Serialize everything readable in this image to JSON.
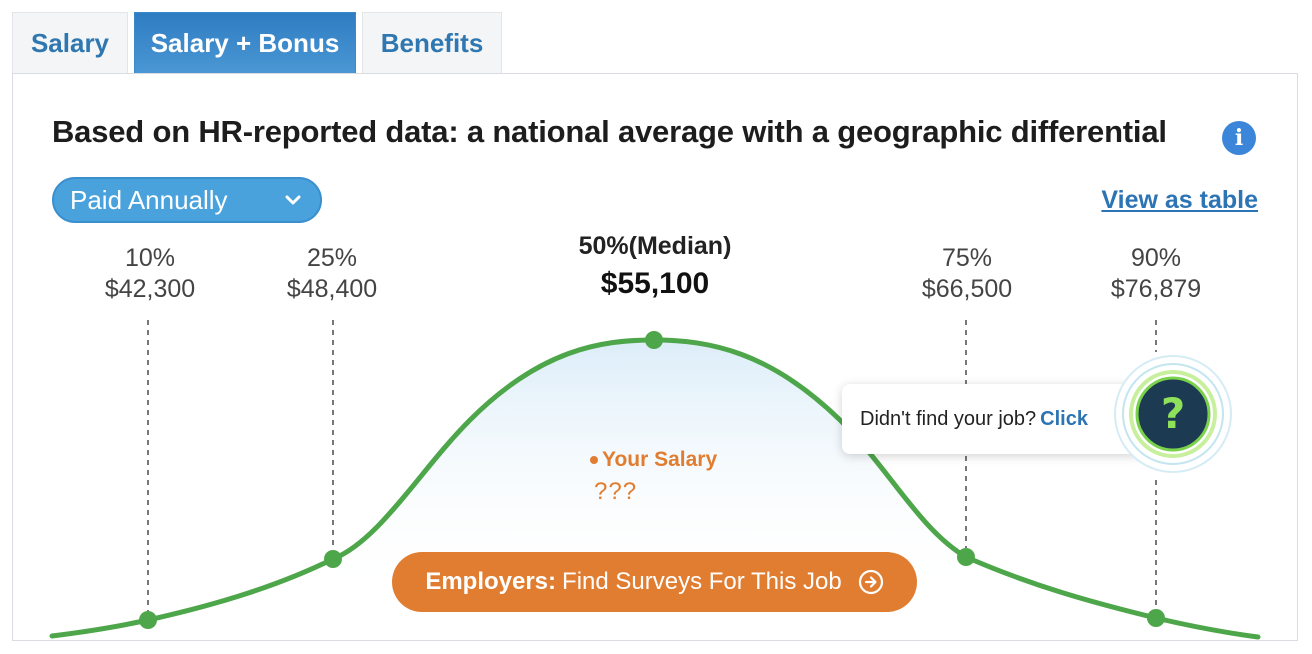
{
  "tabs": [
    {
      "label": "Salary",
      "active": false
    },
    {
      "label": "Salary + Bonus",
      "active": true
    },
    {
      "label": "Benefits",
      "active": false
    }
  ],
  "heading": "Based on HR-reported data: a national average with a geographic differential",
  "info_icon": "info-icon",
  "pay_period": {
    "selected": "Paid Annually"
  },
  "view_table_link": "View as table",
  "percentiles": [
    {
      "label": "10%",
      "value": "$42,300"
    },
    {
      "label": "25%",
      "value": "$48,400"
    },
    {
      "label": "50%(Median)",
      "value": "$55,100"
    },
    {
      "label": "75%",
      "value": "$66,500"
    },
    {
      "label": "90%",
      "value": "$76,879"
    }
  ],
  "your_salary": {
    "label": "Your Salary",
    "value": "???"
  },
  "employers_button": {
    "bold": "Employers:",
    "text": "Find Surveys For This Job"
  },
  "callout": {
    "text": "Didn't find your job?",
    "link": "Click"
  },
  "colors": {
    "accent": "#2f7cc2",
    "curve": "#4ea64a",
    "orange": "#e07d30",
    "link": "#2c74b3"
  }
}
